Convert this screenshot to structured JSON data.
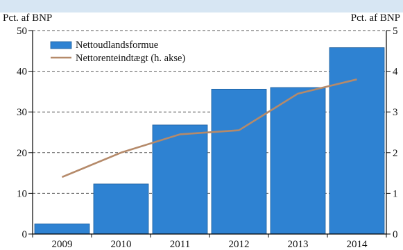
{
  "chart_data": {
    "type": "bar",
    "title": "",
    "categories": [
      "2009",
      "2010",
      "2011",
      "2012",
      "2013",
      "2014"
    ],
    "left_axis": {
      "unit_label": "Pct. af BNP",
      "range": [
        0,
        50
      ],
      "ticks": [
        0,
        10,
        20,
        30,
        40,
        50
      ]
    },
    "right_axis": {
      "unit_label": "Pct. af BNP",
      "range": [
        0,
        5
      ],
      "ticks": [
        0,
        1,
        2,
        3,
        4,
        5
      ]
    },
    "grid": "horizontal-dashed",
    "legend_position": "top-left",
    "series": [
      {
        "name": "Nettoudlandsformue",
        "type": "bar",
        "axis": "left",
        "color": "#2e82d2",
        "values": [
          2.5,
          12.3,
          26.8,
          35.6,
          36.0,
          45.8
        ]
      },
      {
        "name": "Nettorenteindtægt (h. akse)",
        "type": "line",
        "axis": "right",
        "color": "#b58a6a",
        "values": [
          1.4,
          2.0,
          2.45,
          2.55,
          3.45,
          3.8
        ]
      }
    ]
  },
  "colors": {
    "header_band": "#d7e6f3",
    "header_text": "#1a1a1a",
    "axis": "#000000",
    "grid": "#555555"
  }
}
